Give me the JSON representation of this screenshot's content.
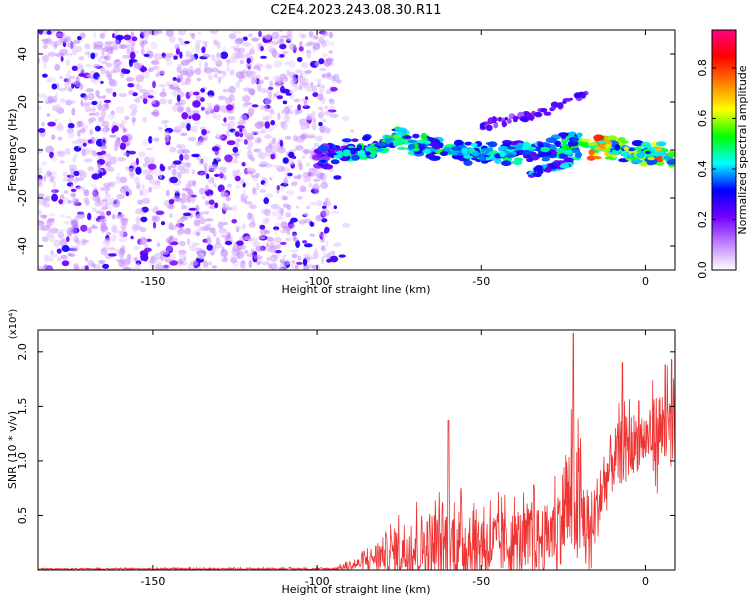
{
  "figure_title": "C2E4.2023.243.08.30.R11",
  "chart_data": [
    {
      "type": "heatmap",
      "title": "",
      "xlabel": "Height of straight line (km)",
      "ylabel": "Frequency (Hz)",
      "xlim": [
        -185,
        9
      ],
      "ylim": [
        -50,
        50
      ],
      "xticks": [
        -150,
        -100,
        -50,
        0
      ],
      "yticks": [
        -40,
        -20,
        0,
        20,
        40
      ],
      "colorbar": {
        "label": "Normalized spectral amplitude",
        "range": [
          0,
          0.95
        ],
        "ticks": [
          0.0,
          0.2,
          0.4,
          0.6,
          0.8
        ],
        "tick_labels": [
          "0.0",
          "0.2",
          "0.4",
          "0.6",
          "0.8"
        ],
        "colormap": [
          "#ffffff",
          "#c080ff",
          "#7000ff",
          "#0000ff",
          "#00ffff",
          "#00ff00",
          "#ffff00",
          "#ff8000",
          "#ff0000",
          "#ff0080"
        ]
      },
      "noise_region": {
        "x": [
          -185,
          -95
        ],
        "freq": [
          -50,
          50
        ],
        "level": 0.15
      },
      "signal_track": [
        {
          "x": -100,
          "freq": -4,
          "level": 0.3
        },
        {
          "x": -90,
          "freq": 0,
          "level": 0.45
        },
        {
          "x": -80,
          "freq": 2,
          "level": 0.5
        },
        {
          "x": -75,
          "freq": 5,
          "level": 0.55
        },
        {
          "x": -70,
          "freq": 2,
          "level": 0.5
        },
        {
          "x": -60,
          "freq": 0,
          "level": 0.5
        },
        {
          "x": -50,
          "freq": -2,
          "level": 0.45
        },
        {
          "x": -40,
          "freq": -1,
          "level": 0.45
        },
        {
          "x": -30,
          "freq": 0,
          "level": 0.45
        },
        {
          "x": -20,
          "freq": 4,
          "level": 0.5
        },
        {
          "x": -17,
          "freq": 1,
          "level": 0.85
        },
        {
          "x": -10,
          "freq": 1,
          "level": 0.6
        },
        {
          "x": 0,
          "freq": -2,
          "level": 0.6
        },
        {
          "x": 5,
          "freq": -1,
          "level": 0.8
        },
        {
          "x": 8,
          "freq": -3,
          "level": 0.6
        }
      ],
      "secondary_track": [
        {
          "x": -35,
          "freq": -10,
          "level": 0.4
        },
        {
          "x": -25,
          "freq": -6,
          "level": 0.4
        },
        {
          "x": -20,
          "freq": -3,
          "level": 0.45
        }
      ],
      "upper_branch": [
        {
          "x": -50,
          "freq": 10,
          "level": 0.25
        },
        {
          "x": -30,
          "freq": 16,
          "level": 0.25
        },
        {
          "x": -18,
          "freq": 24,
          "level": 0.3
        }
      ]
    },
    {
      "type": "line",
      "title": "",
      "xlabel": "Height of straight line (km)",
      "ylabel": "SNR (10 * v/v)",
      "y_multiplier": "(x10⁴)",
      "xlim": [
        -185,
        9
      ],
      "ylim": [
        0,
        2.2
      ],
      "xticks": [
        -150,
        -100,
        -50,
        0
      ],
      "yticks": [
        0.5,
        1.0,
        1.5,
        2.0
      ],
      "ytick_labels": [
        "0.5",
        "1.0",
        "1.5",
        "2.0"
      ],
      "series": [
        {
          "color": "#ee3333",
          "envelope": [
            {
              "x": -185,
              "base": 0.01,
              "amp": 0.005
            },
            {
              "x": -95,
              "base": 0.01,
              "amp": 0.01
            },
            {
              "x": -88,
              "base": 0.05,
              "amp": 0.05
            },
            {
              "x": -80,
              "base": 0.15,
              "amp": 0.15
            },
            {
              "x": -72,
              "base": 0.2,
              "amp": 0.3
            },
            {
              "x": -60,
              "base": 0.25,
              "amp": 0.35
            },
            {
              "x": -50,
              "base": 0.25,
              "amp": 0.3
            },
            {
              "x": -40,
              "base": 0.25,
              "amp": 0.3
            },
            {
              "x": -30,
              "base": 0.3,
              "amp": 0.3
            },
            {
              "x": -26,
              "base": 0.45,
              "amp": 0.4
            },
            {
              "x": -22,
              "base": 0.7,
              "amp": 0.6
            },
            {
              "x": -17,
              "base": 0.3,
              "amp": 0.4
            },
            {
              "x": -15,
              "base": 0.55,
              "amp": 0.3
            },
            {
              "x": -10,
              "base": 1.0,
              "amp": 0.3
            },
            {
              "x": -5,
              "base": 1.15,
              "amp": 0.3
            },
            {
              "x": 0,
              "base": 1.2,
              "amp": 0.25
            },
            {
              "x": 5,
              "base": 1.3,
              "amp": 0.4
            },
            {
              "x": 9,
              "base": 1.2,
              "amp": 0.4
            }
          ],
          "peaks": [
            {
              "x": -60,
              "y": 1.37
            },
            {
              "x": -34,
              "y": 0.78
            },
            {
              "x": -22,
              "y": 2.17
            },
            {
              "x": -7,
              "y": 1.9
            },
            {
              "x": -2,
              "y": 1.55
            },
            {
              "x": 6,
              "y": 1.88
            },
            {
              "x": 8,
              "y": 1.93
            }
          ]
        }
      ]
    }
  ]
}
